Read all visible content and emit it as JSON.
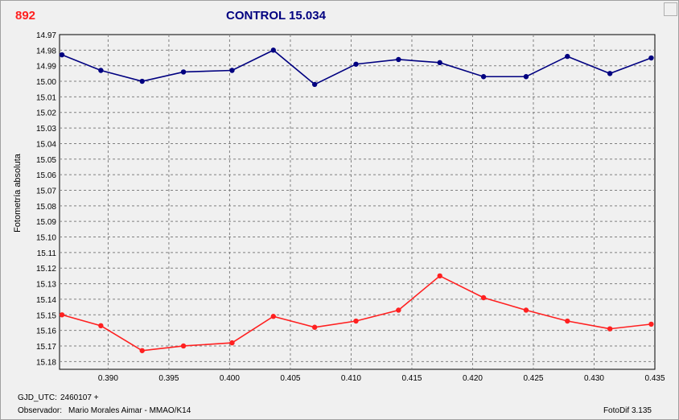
{
  "header": {
    "object_id": "892",
    "title": "CONTROL 15.034"
  },
  "footer": {
    "gjd_label": "GJD_UTC:",
    "gjd_value": "2460107 +",
    "observer_label": "Observador:",
    "observer_value": "Mario Morales Aimar - MMAO/K14",
    "software": "FotoDif 3.135"
  },
  "colors": {
    "background": "#f0f0f0",
    "plot_bg": "#f0f0f0",
    "control_series": "#000080",
    "target_series": "#ff2020",
    "object_id": "#ff2020",
    "title": "#000080"
  },
  "chart_data": {
    "type": "line",
    "ylabel": "Fotometría absoluta",
    "xlabel": "",
    "xlim": [
      0.386,
      0.435
    ],
    "ylim": [
      14.97,
      15.185
    ],
    "y_inverted": true,
    "grid": true,
    "x_ticks": [
      "0.390",
      "0.395",
      "0.400",
      "0.405",
      "0.410",
      "0.415",
      "0.420",
      "0.425",
      "0.430",
      "0.435"
    ],
    "y_ticks": [
      "14.97",
      "14.98",
      "14.99",
      "15.00",
      "15.01",
      "15.02",
      "15.03",
      "15.04",
      "15.05",
      "15.06",
      "15.07",
      "15.08",
      "15.09",
      "15.10",
      "15.11",
      "15.12",
      "15.13",
      "15.14",
      "15.15",
      "15.16",
      "15.17",
      "15.18"
    ],
    "series": [
      {
        "color": "#000080",
        "x": [
          0.3862,
          0.3894,
          0.3928,
          0.3962,
          0.4002,
          0.4036,
          0.407,
          0.4104,
          0.4139,
          0.4173,
          0.4209,
          0.4244,
          0.4278,
          0.4313,
          0.4347
        ],
        "y": [
          14.983,
          14.993,
          15.0,
          14.994,
          14.993,
          14.98,
          15.002,
          14.989,
          14.986,
          14.988,
          14.997,
          14.997,
          14.984,
          14.995,
          14.985
        ]
      },
      {
        "color": "#ff2020",
        "x": [
          0.3862,
          0.3894,
          0.3928,
          0.3962,
          0.4002,
          0.4036,
          0.407,
          0.4104,
          0.4139,
          0.4173,
          0.4209,
          0.4244,
          0.4278,
          0.4313,
          0.4347
        ],
        "y": [
          15.15,
          15.157,
          15.173,
          15.17,
          15.168,
          15.151,
          15.158,
          15.154,
          15.147,
          15.125,
          15.139,
          15.147,
          15.154,
          15.159,
          15.156
        ]
      }
    ]
  }
}
